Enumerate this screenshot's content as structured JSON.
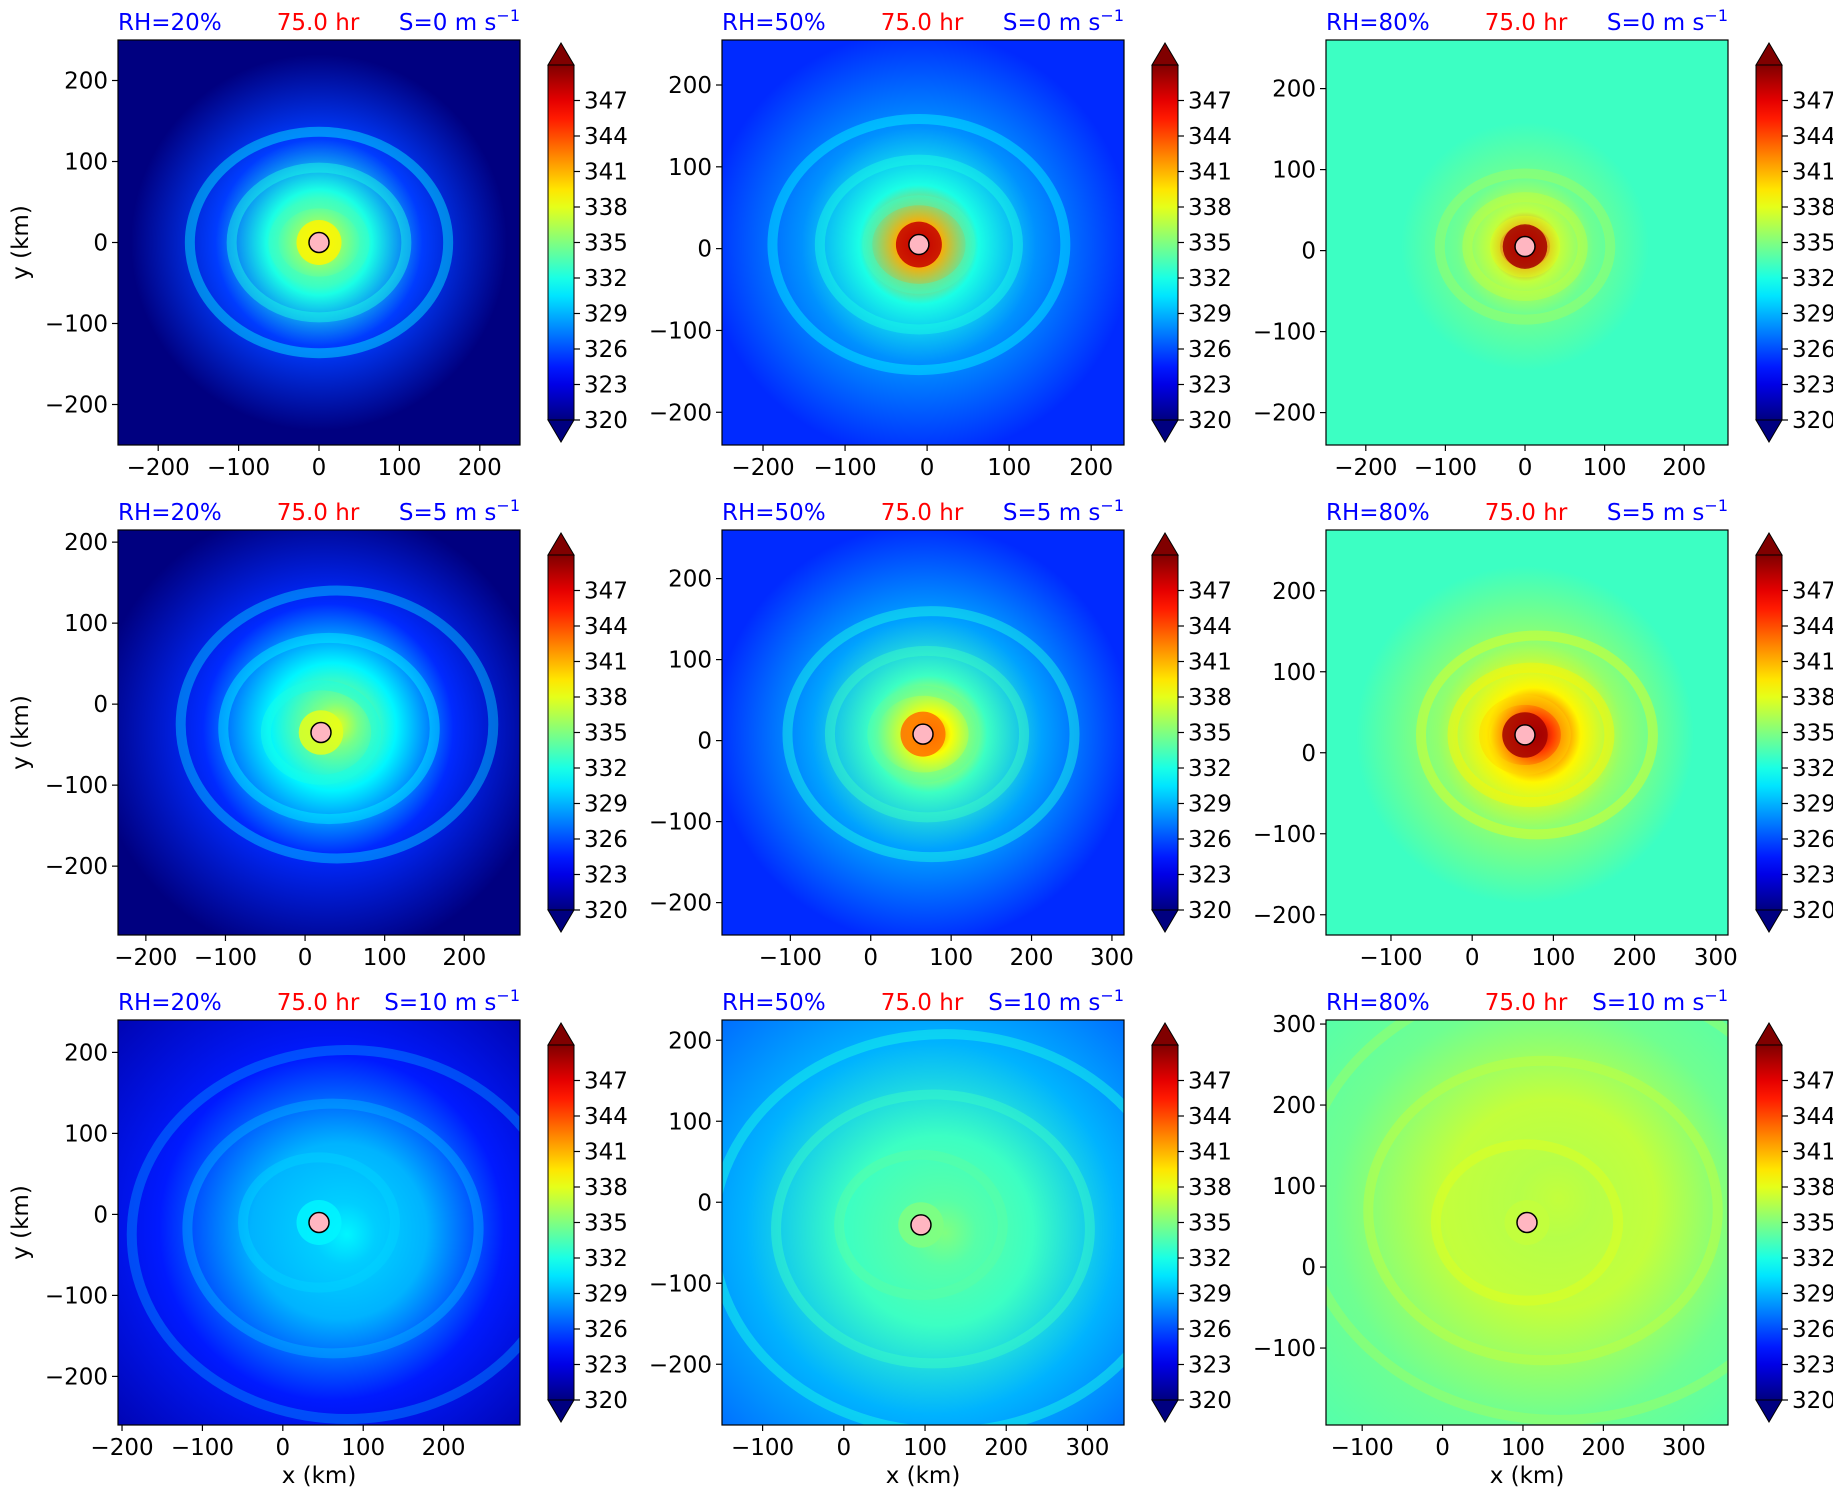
{
  "figure": {
    "colorbar_ticks": [
      "320",
      "323",
      "326",
      "329",
      "332",
      "335",
      "338",
      "341",
      "344",
      "347"
    ],
    "colorbar_min": 320,
    "colorbar_max": 350,
    "colorbar_extend": "both",
    "colormap": "jet",
    "x_label": "x (km)",
    "y_label": "y (km)"
  },
  "chart_data": [
    {
      "type": "heatmap",
      "rh_label": "RH=20%",
      "time_label": "75.0 hr",
      "shear_prefix": "S=0 m s",
      "shear_exp": "−1",
      "xlim": [
        -250,
        250
      ],
      "ylim": [
        -250,
        250
      ],
      "xticks": [
        -200,
        -100,
        0,
        100,
        200
      ],
      "yticks": [
        -200,
        -100,
        0,
        100,
        200
      ],
      "center": [
        0,
        0
      ],
      "eye_value": 339,
      "env_value": 320,
      "halo_value": 331,
      "spread": 0.9,
      "asym": [
        0,
        0
      ]
    },
    {
      "type": "heatmap",
      "rh_label": "RH=50%",
      "time_label": "75.0 hr",
      "shear_prefix": "S=0 m s",
      "shear_exp": "−1",
      "xlim": [
        -250,
        240
      ],
      "ylim": [
        -240,
        255
      ],
      "xticks": [
        -200,
        -100,
        0,
        100,
        200
      ],
      "yticks": [
        -200,
        -100,
        0,
        100,
        200
      ],
      "center": [
        -10,
        5
      ],
      "eye_value": 348,
      "env_value": 325,
      "halo_value": 331,
      "spread": 1.0,
      "asym": [
        0,
        0
      ]
    },
    {
      "type": "heatmap",
      "rh_label": "RH=80%",
      "time_label": "75.0 hr",
      "shear_prefix": "S=0 m s",
      "shear_exp": "−1",
      "xlim": [
        -250,
        255
      ],
      "ylim": [
        -240,
        260
      ],
      "xticks": [
        -200,
        -100,
        0,
        100,
        200
      ],
      "yticks": [
        -200,
        -100,
        0,
        100,
        200
      ],
      "center": [
        0,
        5
      ],
      "eye_value": 349,
      "env_value": 333,
      "halo_value": 336,
      "spread": 0.6,
      "asym": [
        0,
        0
      ]
    },
    {
      "type": "heatmap",
      "rh_label": "RH=20%",
      "time_label": "75.0 hr",
      "shear_prefix": "S=5 m s",
      "shear_exp": "−1",
      "xlim": [
        -235,
        270
      ],
      "ylim": [
        -285,
        215
      ],
      "xticks": [
        -200,
        -100,
        0,
        100,
        200
      ],
      "yticks": [
        -200,
        -100,
        0,
        100,
        200
      ],
      "center": [
        20,
        -35
      ],
      "eye_value": 338,
      "env_value": 320,
      "halo_value": 330,
      "spread": 1.1,
      "asym": [
        0.4,
        -0.2
      ]
    },
    {
      "type": "heatmap",
      "rh_label": "RH=50%",
      "time_label": "75.0 hr",
      "shear_prefix": "S=5 m s",
      "shear_exp": "−1",
      "xlim": [
        -185,
        315
      ],
      "ylim": [
        -240,
        260
      ],
      "xticks": [
        -100,
        0,
        100,
        200,
        300
      ],
      "yticks": [
        -200,
        -100,
        0,
        100,
        200
      ],
      "center": [
        65,
        8
      ],
      "eye_value": 343,
      "env_value": 325,
      "halo_value": 332,
      "spread": 1.0,
      "asym": [
        0.2,
        0
      ]
    },
    {
      "type": "heatmap",
      "rh_label": "RH=80%",
      "time_label": "75.0 hr",
      "shear_prefix": "S=5 m s",
      "shear_exp": "−1",
      "xlim": [
        -180,
        315
      ],
      "ylim": [
        -225,
        275
      ],
      "xticks": [
        -100,
        0,
        100,
        200,
        300
      ],
      "yticks": [
        -200,
        -100,
        0,
        100,
        200
      ],
      "center": [
        65,
        22
      ],
      "eye_value": 349,
      "env_value": 333,
      "halo_value": 338,
      "spread": 0.8,
      "asym": [
        0.3,
        0
      ]
    },
    {
      "type": "heatmap",
      "rh_label": "RH=20%",
      "time_label": "75.0 hr",
      "shear_prefix": "S=10 m s",
      "shear_exp": "−1",
      "xlim": [
        -205,
        295
      ],
      "ylim": [
        -260,
        240
      ],
      "xticks": [
        -200,
        -100,
        0,
        100,
        200
      ],
      "yticks": [
        -200,
        -100,
        0,
        100,
        200
      ],
      "center": [
        45,
        -10
      ],
      "eye_value": 331,
      "env_value": 321,
      "halo_value": 328,
      "spread": 1.5,
      "asym": [
        0.7,
        0.3
      ]
    },
    {
      "type": "heatmap",
      "rh_label": "RH=50%",
      "time_label": "75.0 hr",
      "shear_prefix": "S=10 m s",
      "shear_exp": "−1",
      "xlim": [
        -150,
        345
      ],
      "ylim": [
        -275,
        225
      ],
      "xticks": [
        -100,
        0,
        100,
        200,
        300
      ],
      "yticks": [
        -200,
        -100,
        0,
        100,
        200
      ],
      "center": [
        95,
        -28
      ],
      "eye_value": 335,
      "env_value": 326,
      "halo_value": 332,
      "spread": 1.6,
      "asym": [
        0.6,
        0.2
      ]
    },
    {
      "type": "heatmap",
      "rh_label": "RH=80%",
      "time_label": "75.0 hr",
      "shear_prefix": "S=10 m s",
      "shear_exp": "−1",
      "xlim": [
        -145,
        355
      ],
      "ylim": [
        -195,
        305
      ],
      "xticks": [
        -100,
        0,
        100,
        200,
        300
      ],
      "yticks": [
        -100,
        0,
        100,
        200,
        300
      ],
      "center": [
        105,
        55
      ],
      "eye_value": 337,
      "env_value": 333,
      "halo_value": 336,
      "spread": 1.8,
      "asym": [
        0.8,
        -0.6
      ]
    }
  ]
}
